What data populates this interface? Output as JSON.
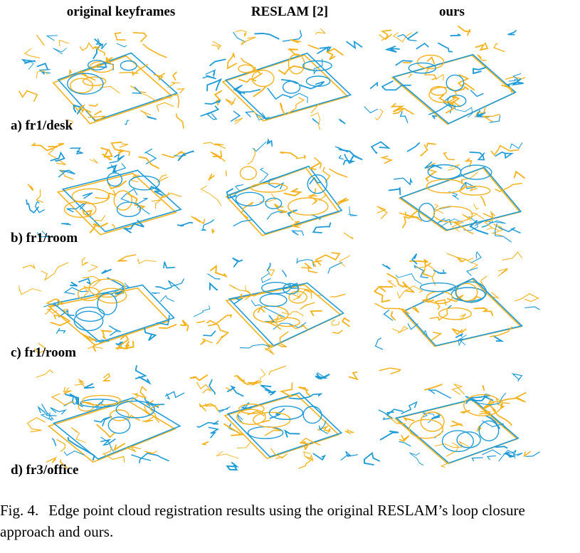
{
  "figure": {
    "columns": [
      "original keyframes",
      "RESLAM [2]",
      "ours"
    ],
    "rows": [
      "a) fr1/desk",
      "b) fr1/room",
      "c) fr1/room",
      "d) fr3/office"
    ],
    "colors": {
      "series_a": "#f5b21d",
      "series_b": "#1e9bd6"
    },
    "caption": {
      "label": "Fig. 4.",
      "text": "Edge point cloud registration results using the original RESLAM’s loop closure approach and ours."
    }
  }
}
